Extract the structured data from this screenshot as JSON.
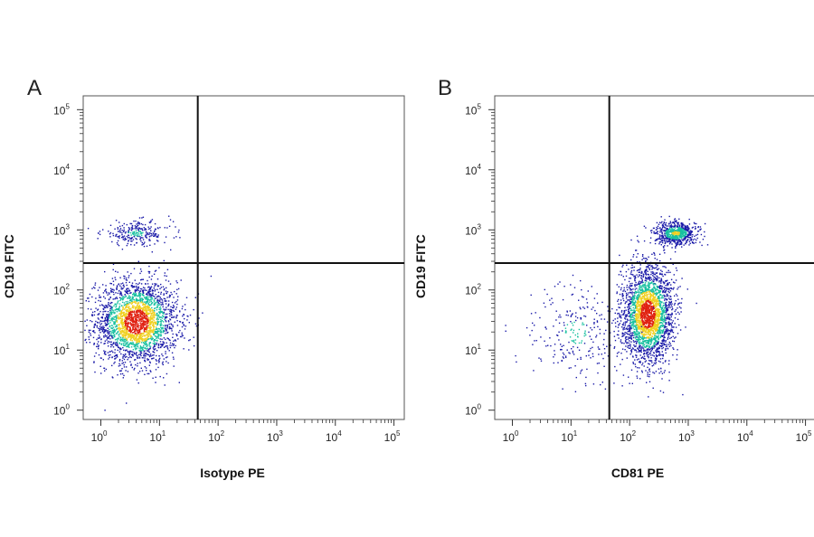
{
  "chart_data": [
    {
      "type": "scatter",
      "panel_label": "A",
      "xlabel": "Isotype PE",
      "ylabel": "CD19 FITC",
      "x_scale": "log",
      "y_scale": "log",
      "xlim": [
        0.5,
        150000
      ],
      "ylim": [
        0.7,
        170000
      ],
      "x_ticks": [
        "10^0",
        "10^1",
        "10^2",
        "10^3",
        "10^4",
        "10^5"
      ],
      "y_ticks": [
        "10^0",
        "10^1",
        "10^2",
        "10^3",
        "10^4",
        "10^5"
      ],
      "quadrant_gate": {
        "x": 45,
        "y": 280
      },
      "populations": [
        {
          "name": "CD19- population",
          "x_center": 4,
          "y_center": 30,
          "x_log_spread": 0.35,
          "y_log_spread": 0.35,
          "peak_density": "high"
        },
        {
          "name": "CD19+ population",
          "x_center": 4,
          "y_center": 900,
          "x_log_spread": 0.3,
          "y_log_spread": 0.1,
          "peak_density": "low"
        }
      ],
      "grid": false
    },
    {
      "type": "scatter",
      "panel_label": "B",
      "xlabel": "CD81 PE",
      "ylabel": "CD19 FITC",
      "x_scale": "log",
      "y_scale": "log",
      "xlim": [
        0.5,
        150000
      ],
      "ylim": [
        0.7,
        170000
      ],
      "x_ticks": [
        "10^0",
        "10^1",
        "10^2",
        "10^3",
        "10^4",
        "10^5"
      ],
      "y_ticks": [
        "10^0",
        "10^1",
        "10^2",
        "10^3",
        "10^4",
        "10^5"
      ],
      "quadrant_gate": {
        "x": 45,
        "y": 280
      },
      "populations": [
        {
          "name": "CD81+ CD19- population",
          "x_center": 200,
          "y_center": 40,
          "x_log_spread": 0.22,
          "y_log_spread": 0.4,
          "peak_density": "high"
        },
        {
          "name": "CD81+ CD19+ population",
          "x_center": 600,
          "y_center": 900,
          "x_log_spread": 0.18,
          "y_log_spread": 0.1,
          "peak_density": "medium"
        },
        {
          "name": "CD81 low tail",
          "x_center": 12,
          "y_center": 20,
          "x_log_spread": 0.4,
          "y_log_spread": 0.4,
          "peak_density": "low"
        }
      ],
      "grid": false
    }
  ],
  "colors": {
    "low_density": "#1a1aa8",
    "mid_density": "#18c0a0",
    "high_density": "#f0d020",
    "peak_density": "#e02010",
    "gate_line": "#111111"
  }
}
